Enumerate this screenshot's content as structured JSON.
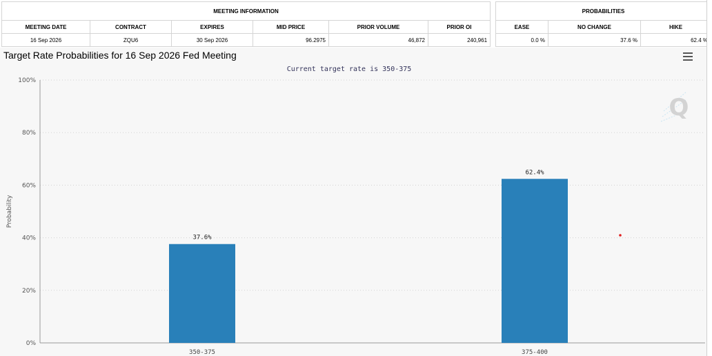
{
  "meeting_info": {
    "heading": "MEETING INFORMATION",
    "columns": [
      "MEETING DATE",
      "CONTRACT",
      "EXPIRES",
      "MID PRICE",
      "PRIOR VOLUME",
      "PRIOR OI"
    ],
    "values": [
      "16 Sep 2026",
      "ZQU6",
      "30 Sep 2026",
      "96.2975",
      "46,872",
      "240,961"
    ]
  },
  "probabilities": {
    "heading": "PROBABILITIES",
    "columns": [
      "EASE",
      "NO CHANGE",
      "HIKE"
    ],
    "values": [
      "0.0 %",
      "37.6 %",
      "62.4 %"
    ]
  },
  "chart_data": {
    "type": "bar",
    "title": "Target Rate Probabilities for 16 Sep 2026 Fed Meeting",
    "subtitle": "Current target rate is 350-375",
    "ylabel": "Probability",
    "xlabel": "",
    "categories": [
      "350-375",
      "375-400"
    ],
    "values": [
      37.6,
      62.4
    ],
    "data_labels": [
      "37.6%",
      "62.4%"
    ],
    "ylim": [
      0,
      100
    ],
    "yticks": [
      0,
      20,
      40,
      60,
      80,
      100
    ],
    "ytick_labels": [
      "0%",
      "20%",
      "40%",
      "60%",
      "80%",
      "100%"
    ],
    "grid": true,
    "legend": "none",
    "bar_color": "#2980b9",
    "plot_background": "#f7f7f7"
  },
  "icons": {
    "menu": "hamburger-menu-icon",
    "watermark": "q-logo-watermark"
  },
  "watermark_text": "Q"
}
